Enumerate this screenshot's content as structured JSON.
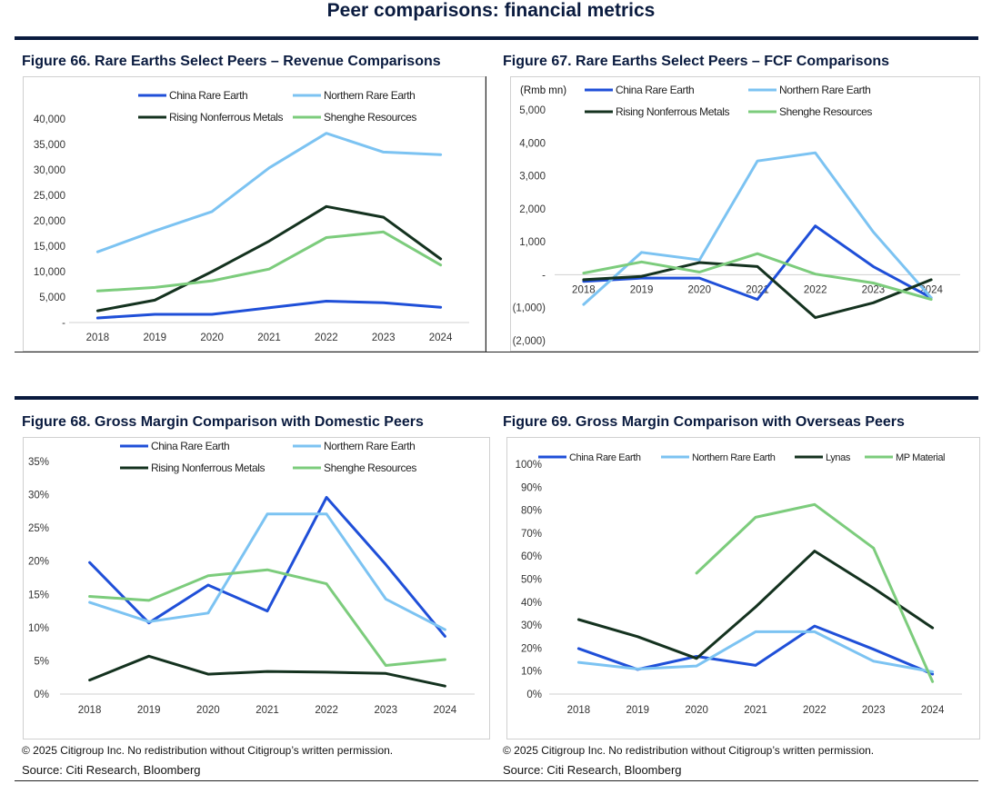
{
  "page": {
    "title": "Peer comparisons: financial metrics",
    "copyright_left": "© 2025 Citigroup Inc. No redistribution without Citigroup’s written permission.",
    "copyright_right": "© 2025 Citigroup Inc. No redistribution without Citigroup’s written permission.",
    "source_left": "Source: Citi Research, Bloomberg",
    "source_right": "Source: Citi Research, Bloomberg"
  },
  "colors": {
    "china_rare_earth": "#1f4fd8",
    "northern_rare_earth": "#7cc3f2",
    "rising_nonferrous": "#14321f",
    "shenghe": "#7ccc7c",
    "lynas": "#14321f",
    "mp_materials": "#7ccc7c",
    "axis": "#d0d0d0",
    "text": "#333333"
  },
  "chart_data": [
    {
      "id": "fig66",
      "figure_title": "Figure 66. Rare Earths Select Peers – Revenue Comparisons",
      "type": "line",
      "unit_label": "",
      "x": [
        "2018",
        "2019",
        "2020",
        "2021",
        "2022",
        "2023",
        "2024"
      ],
      "ylim": [
        0,
        40000
      ],
      "yticks": [
        0,
        5000,
        10000,
        15000,
        20000,
        25000,
        30000,
        35000,
        40000
      ],
      "ytick_labels": [
        "-",
        "5,000",
        "10,000",
        "15,000",
        "20,000",
        "25,000",
        "30,000",
        "35,000",
        "40,000"
      ],
      "legend": [
        {
          "name": "China Rare Earth",
          "color_key": "china_rare_earth"
        },
        {
          "name": "Northern Rare Earth",
          "color_key": "northern_rare_earth"
        },
        {
          "name": "Rising Nonferrous Metals",
          "color_key": "rising_nonferrous"
        },
        {
          "name": "Shenghe Resources",
          "color_key": "shenghe"
        }
      ],
      "series": [
        {
          "name": "China Rare Earth",
          "color_key": "china_rare_earth",
          "values": [
            900,
            1600,
            1600,
            2900,
            4200,
            3900,
            3000
          ]
        },
        {
          "name": "Northern Rare Earth",
          "color_key": "northern_rare_earth",
          "values": [
            13900,
            18000,
            21800,
            30400,
            37200,
            33500,
            33000
          ]
        },
        {
          "name": "Rising Nonferrous Metals",
          "color_key": "rising_nonferrous",
          "values": [
            2300,
            4400,
            10000,
            16000,
            22800,
            20700,
            12500
          ]
        },
        {
          "name": "Shenghe Resources",
          "color_key": "shenghe",
          "values": [
            6200,
            6900,
            8200,
            10500,
            16700,
            17800,
            11300
          ]
        }
      ]
    },
    {
      "id": "fig67",
      "figure_title": "Figure 67. Rare Earths Select Peers – FCF Comparisons",
      "type": "line",
      "unit_label": "(Rmb mn)",
      "x": [
        "2018",
        "2019",
        "2020",
        "2021",
        "2022",
        "2023",
        "2024"
      ],
      "ylim": [
        -2000,
        5000
      ],
      "yticks": [
        -2000,
        -1000,
        0,
        1000,
        2000,
        3000,
        4000,
        5000
      ],
      "ytick_labels": [
        "(2,000)",
        "(1,000)",
        "-",
        "1,000",
        "2,000",
        "3,000",
        "4,000",
        "5,000"
      ],
      "legend": [
        {
          "name": "China Rare Earth",
          "color_key": "china_rare_earth"
        },
        {
          "name": "Northern Rare Earth",
          "color_key": "northern_rare_earth"
        },
        {
          "name": "Rising Nonferrous Metals",
          "color_key": "rising_nonferrous"
        },
        {
          "name": "Shenghe Resources",
          "color_key": "shenghe"
        }
      ],
      "series": [
        {
          "name": "China Rare Earth",
          "color_key": "china_rare_earth",
          "values": [
            -200,
            -100,
            -100,
            -750,
            1480,
            250,
            -700
          ]
        },
        {
          "name": "Northern Rare Earth",
          "color_key": "northern_rare_earth",
          "values": [
            -900,
            680,
            450,
            3450,
            3700,
            1300,
            -700
          ]
        },
        {
          "name": "Rising Nonferrous Metals",
          "color_key": "rising_nonferrous",
          "values": [
            -150,
            -50,
            370,
            250,
            -1300,
            -850,
            -150
          ]
        },
        {
          "name": "Shenghe Resources",
          "color_key": "shenghe",
          "values": [
            50,
            390,
            80,
            640,
            20,
            -250,
            -750
          ]
        }
      ]
    },
    {
      "id": "fig68",
      "figure_title": "Figure 68. Gross Margin Comparison with Domestic Peers",
      "type": "line",
      "unit_label": "",
      "x": [
        "2018",
        "2019",
        "2020",
        "2021",
        "2022",
        "2023",
        "2024"
      ],
      "ylim": [
        0,
        35
      ],
      "yticks": [
        0,
        5,
        10,
        15,
        20,
        25,
        30,
        35
      ],
      "ytick_labels": [
        "0%",
        "5%",
        "10%",
        "15%",
        "20%",
        "25%",
        "30%",
        "35%"
      ],
      "legend": [
        {
          "name": "China Rare Earth",
          "color_key": "china_rare_earth"
        },
        {
          "name": "Northern Rare Earth",
          "color_key": "northern_rare_earth"
        },
        {
          "name": "Rising Nonferrous Metals",
          "color_key": "rising_nonferrous"
        },
        {
          "name": "Shenghe Resources",
          "color_key": "shenghe"
        }
      ],
      "series": [
        {
          "name": "China Rare Earth",
          "color_key": "china_rare_earth",
          "values": [
            19.8,
            10.7,
            16.4,
            12.5,
            29.6,
            19.5,
            8.7
          ]
        },
        {
          "name": "Northern Rare Earth",
          "color_key": "northern_rare_earth",
          "values": [
            13.8,
            10.9,
            12.2,
            27.1,
            27.1,
            14.3,
            9.7
          ]
        },
        {
          "name": "Rising Nonferrous Metals",
          "color_key": "rising_nonferrous",
          "values": [
            2.1,
            5.7,
            3.0,
            3.4,
            3.3,
            3.1,
            1.2
          ]
        },
        {
          "name": "Shenghe Resources",
          "color_key": "shenghe",
          "values": [
            14.7,
            14.1,
            17.8,
            18.7,
            16.6,
            4.3,
            5.2
          ]
        }
      ]
    },
    {
      "id": "fig69",
      "figure_title": "Figure 69. Gross Margin Comparison with Overseas Peers",
      "type": "line",
      "unit_label": "",
      "x": [
        "2018",
        "2019",
        "2020",
        "2021",
        "2022",
        "2023",
        "2024"
      ],
      "ylim": [
        0,
        100
      ],
      "yticks": [
        0,
        10,
        20,
        30,
        40,
        50,
        60,
        70,
        80,
        90,
        100
      ],
      "ytick_labels": [
        "0%",
        "10%",
        "20%",
        "30%",
        "40%",
        "50%",
        "60%",
        "70%",
        "80%",
        "90%",
        "100%"
      ],
      "legend": [
        {
          "name": "China Rare Earth",
          "color_key": "china_rare_earth"
        },
        {
          "name": "Northern Rare Earth",
          "color_key": "northern_rare_earth"
        },
        {
          "name": "Lynas",
          "color_key": "lynas"
        },
        {
          "name": "MP Material",
          "color_key": "mp_materials"
        }
      ],
      "series": [
        {
          "name": "China Rare Earth",
          "color_key": "china_rare_earth",
          "values": [
            19.8,
            10.7,
            16.4,
            12.5,
            29.6,
            19.5,
            8.7
          ]
        },
        {
          "name": "Northern Rare Earth",
          "color_key": "northern_rare_earth",
          "values": [
            13.8,
            10.9,
            12.2,
            27.1,
            27.1,
            14.3,
            9.7
          ]
        },
        {
          "name": "Lynas",
          "color_key": "lynas",
          "values": [
            32.4,
            25.0,
            15.5,
            37.9,
            62.2,
            46.1,
            28.8
          ]
        },
        {
          "name": "MP Material",
          "color_key": "mp_materials",
          "values": [
            null,
            null,
            52.6,
            76.9,
            82.5,
            63.5,
            5.4
          ]
        }
      ]
    }
  ]
}
